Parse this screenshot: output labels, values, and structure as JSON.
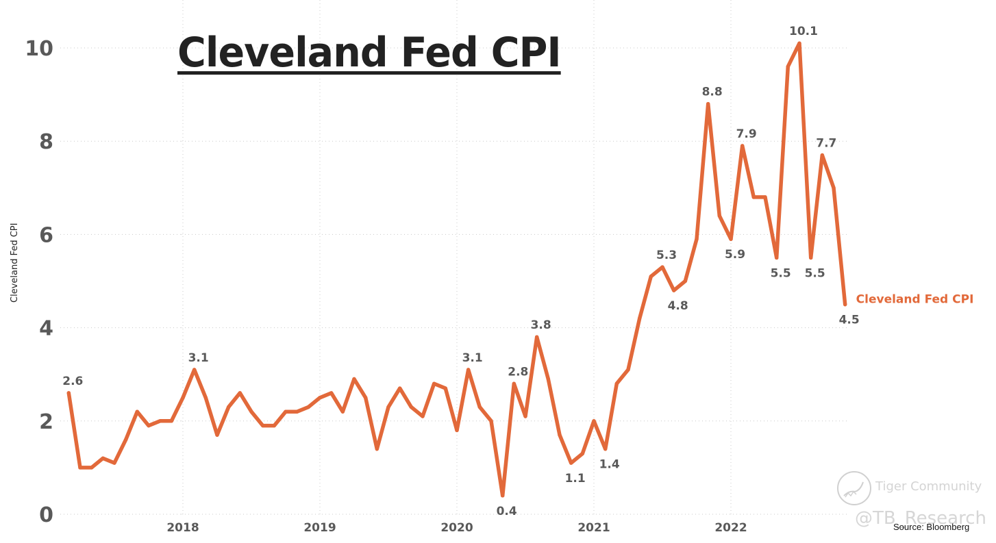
{
  "chart_data": {
    "type": "line",
    "title": "Cleveland Fed CPI",
    "xlabel": "",
    "ylabel": "Cleveland Fed CPI",
    "ylim": [
      0,
      10.5
    ],
    "yticks": [
      0,
      2,
      4,
      6,
      8,
      10
    ],
    "xticks": [
      "2018",
      "2019",
      "2020",
      "2021",
      "2022"
    ],
    "grid": true,
    "legend": "inline-right",
    "x": [
      "2017-03",
      "2017-04",
      "2017-05",
      "2017-06",
      "2017-07",
      "2017-08",
      "2017-09",
      "2017-10",
      "2017-11",
      "2017-12",
      "2018-01",
      "2018-02",
      "2018-03",
      "2018-04",
      "2018-05",
      "2018-06",
      "2018-07",
      "2018-08",
      "2018-09",
      "2018-10",
      "2018-11",
      "2018-12",
      "2019-01",
      "2019-02",
      "2019-03",
      "2019-04",
      "2019-05",
      "2019-06",
      "2019-07",
      "2019-08",
      "2019-09",
      "2019-10",
      "2019-11",
      "2019-12",
      "2020-01",
      "2020-02",
      "2020-03",
      "2020-04",
      "2020-05",
      "2020-06",
      "2020-07",
      "2020-08",
      "2020-09",
      "2020-10",
      "2020-11",
      "2020-12",
      "2021-01",
      "2021-02",
      "2021-03",
      "2021-04",
      "2021-05",
      "2021-06",
      "2021-07",
      "2021-08",
      "2021-09",
      "2021-10",
      "2021-11",
      "2021-12",
      "2022-01",
      "2022-02",
      "2022-03",
      "2022-04",
      "2022-05",
      "2022-06",
      "2022-07",
      "2022-08",
      "2022-09",
      "2022-10",
      "2022-11"
    ],
    "series": [
      {
        "name": "Cleveland Fed CPI",
        "color": "#E2693A",
        "values": [
          2.6,
          1.0,
          1.0,
          1.2,
          1.1,
          1.6,
          2.2,
          1.9,
          2.0,
          2.0,
          2.5,
          3.1,
          2.5,
          1.7,
          2.3,
          2.6,
          2.2,
          1.9,
          1.9,
          2.2,
          2.2,
          2.3,
          2.5,
          2.6,
          2.2,
          2.9,
          2.5,
          1.4,
          2.3,
          2.7,
          2.3,
          2.1,
          2.8,
          2.7,
          1.8,
          3.1,
          2.3,
          2.0,
          0.4,
          2.8,
          2.1,
          3.8,
          2.9,
          1.7,
          1.1,
          1.3,
          2.0,
          1.4,
          2.8,
          3.1,
          4.2,
          5.1,
          5.3,
          4.8,
          5.0,
          5.9,
          8.8,
          6.4,
          5.9,
          7.9,
          6.8,
          6.8,
          5.5,
          9.6,
          10.1,
          5.5,
          7.7,
          7.0,
          4.5
        ]
      }
    ],
    "annotations": [
      {
        "index": 0,
        "text": "2.6",
        "pos": "above"
      },
      {
        "index": 11,
        "text": "3.1",
        "pos": "above"
      },
      {
        "index": 35,
        "text": "3.1",
        "pos": "above"
      },
      {
        "index": 38,
        "text": "0.4",
        "pos": "below"
      },
      {
        "index": 39,
        "text": "2.8",
        "pos": "above"
      },
      {
        "index": 41,
        "text": "3.8",
        "pos": "above"
      },
      {
        "index": 44,
        "text": "1.1",
        "pos": "below"
      },
      {
        "index": 47,
        "text": "1.4",
        "pos": "below"
      },
      {
        "index": 52,
        "text": "5.3",
        "pos": "above"
      },
      {
        "index": 53,
        "text": "4.8",
        "pos": "below"
      },
      {
        "index": 56,
        "text": "8.8",
        "pos": "above"
      },
      {
        "index": 58,
        "text": "5.9",
        "pos": "below"
      },
      {
        "index": 59,
        "text": "7.9",
        "pos": "above"
      },
      {
        "index": 62,
        "text": "5.5",
        "pos": "below"
      },
      {
        "index": 64,
        "text": "10.1",
        "pos": "above"
      },
      {
        "index": 65,
        "text": "5.5",
        "pos": "below"
      },
      {
        "index": 66,
        "text": "7.7",
        "pos": "above"
      },
      {
        "index": 68,
        "text": "4.5",
        "pos": "below"
      }
    ],
    "series_label": "Cleveland Fed CPI"
  },
  "watermark": {
    "brand": "Tiger Community",
    "handle": "@TB_Research"
  },
  "source": "Source: Bloomberg",
  "colors": {
    "line": "#E2693A",
    "label": "#595959",
    "grid": "#c8c8c8",
    "title": "#222222"
  }
}
